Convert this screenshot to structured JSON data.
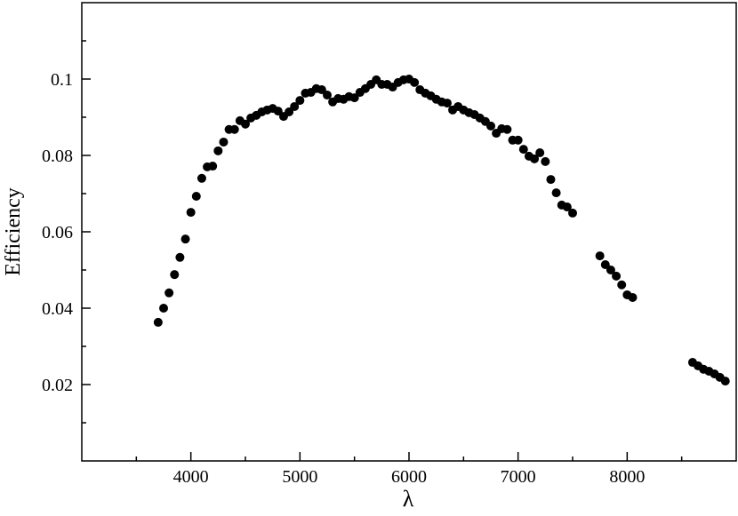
{
  "chart_data": {
    "type": "scatter",
    "x_label": "λ",
    "y_label": "Efficiency",
    "color": "#000000",
    "x": [
      3700,
      3750,
      3800,
      3850,
      3900,
      3950,
      4000,
      4050,
      4100,
      4150,
      4200,
      4250,
      4300,
      4350,
      4400,
      4450,
      4500,
      4550,
      4600,
      4650,
      4700,
      4750,
      4800,
      4850,
      4900,
      4950,
      5000,
      5050,
      5100,
      5150,
      5200,
      5250,
      5300,
      5350,
      5400,
      5450,
      5500,
      5550,
      5600,
      5650,
      5700,
      5750,
      5800,
      5850,
      5900,
      5950,
      6000,
      6050,
      6100,
      6150,
      6200,
      6250,
      6300,
      6350,
      6400,
      6450,
      6500,
      6550,
      6600,
      6650,
      6700,
      6750,
      6800,
      6850,
      6900,
      6950,
      7000,
      7050,
      7100,
      7150,
      7200,
      7250,
      7300,
      7350,
      7400,
      7450,
      7500,
      7750,
      7800,
      7850,
      7900,
      7950,
      8000,
      8050,
      8600,
      8650,
      8700,
      8750,
      8800,
      8850,
      8900
    ],
    "values": [
      0.0363,
      0.04,
      0.044,
      0.0488,
      0.0533,
      0.0581,
      0.0651,
      0.0693,
      0.074,
      0.077,
      0.0772,
      0.0812,
      0.0835,
      0.0868,
      0.0868,
      0.0891,
      0.0882,
      0.0898,
      0.0905,
      0.0914,
      0.0919,
      0.0923,
      0.0916,
      0.0902,
      0.0914,
      0.0928,
      0.0944,
      0.0963,
      0.0965,
      0.0975,
      0.0972,
      0.0958,
      0.094,
      0.0949,
      0.0947,
      0.0954,
      0.0951,
      0.0965,
      0.0975,
      0.0986,
      0.0998,
      0.0986,
      0.0986,
      0.0979,
      0.0991,
      0.0998,
      0.1,
      0.0991,
      0.0972,
      0.0963,
      0.0956,
      0.0947,
      0.094,
      0.0937,
      0.0919,
      0.0928,
      0.0919,
      0.0912,
      0.0907,
      0.0898,
      0.0889,
      0.0877,
      0.0858,
      0.087,
      0.0868,
      0.084,
      0.084,
      0.0816,
      0.0798,
      0.0791,
      0.0807,
      0.0784,
      0.0737,
      0.0702,
      0.067,
      0.0665,
      0.0649,
      0.0537,
      0.0514,
      0.05,
      0.0484,
      0.0461,
      0.0435,
      0.0428,
      0.0258,
      0.0249,
      0.024,
      0.0235,
      0.0228,
      0.0219,
      0.0209
    ],
    "xlim": [
      3000,
      9000
    ],
    "ylim": [
      0,
      0.12
    ],
    "xticks": [
      4000,
      5000,
      6000,
      7000,
      8000
    ],
    "yticks": [
      0.02,
      0.04,
      0.06,
      0.08,
      0.1
    ],
    "xticks_minor": [
      3500,
      4500,
      5500,
      6500,
      7500,
      8500
    ],
    "yticks_minor": [
      0.01,
      0.03,
      0.05,
      0.07,
      0.09,
      0.11
    ]
  }
}
